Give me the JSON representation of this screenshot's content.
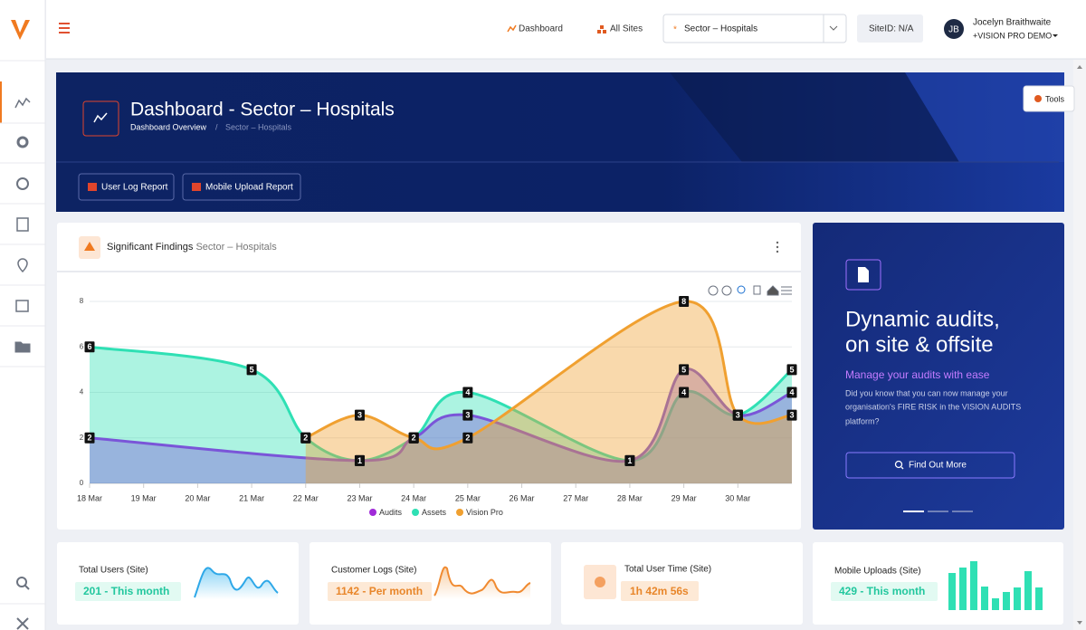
{
  "topbar": {
    "nav": [
      "Dashboard",
      "All Sites"
    ],
    "sector_select": "Sector – Hospitals",
    "site_id": "SiteID: N/A",
    "user": {
      "initials": "JB",
      "name": "Jocelyn Braithwaite",
      "org": "+VISION PRO DEMO"
    }
  },
  "tools": "Tools",
  "banner": {
    "title": "Dashboard - Sector – Hospitals",
    "breadcrumb": [
      "Dashboard Overview",
      "Sector – Hospitals"
    ],
    "buttons": [
      "User Log Report",
      "Mobile Upload Report"
    ]
  },
  "findings_card": {
    "title": "Significant Findings",
    "subtitle": "Sector – Hospitals"
  },
  "chart_data": {
    "type": "area",
    "xlim": [
      18,
      31
    ],
    "xticks": [
      {
        "value": 18,
        "label": "18 Mar"
      },
      {
        "value": 19,
        "label": "19 Mar"
      },
      {
        "value": 20,
        "label": "20 Mar"
      },
      {
        "value": 21,
        "label": "21 Mar"
      },
      {
        "value": 22,
        "label": "22 Mar"
      },
      {
        "value": 23,
        "label": "23 Mar"
      },
      {
        "value": 24,
        "label": "24 Mar"
      },
      {
        "value": 25,
        "label": "25 Mar"
      },
      {
        "value": 26,
        "label": "26 Mar"
      },
      {
        "value": 27,
        "label": "27 Mar"
      },
      {
        "value": 28,
        "label": "28 Mar"
      },
      {
        "value": 29,
        "label": "29 Mar"
      },
      {
        "value": 30,
        "label": "30 Mar"
      }
    ],
    "ylim": [
      0,
      8
    ],
    "yticks": [
      0,
      2,
      4,
      6,
      8
    ],
    "grid": true,
    "series": [
      {
        "name": "Assets",
        "color": "#2fe0b4",
        "x": [
          18,
          21,
          22,
          23,
          24,
          25,
          28,
          29,
          30,
          31
        ],
        "values": [
          6,
          5,
          2,
          1,
          2,
          4,
          1,
          4,
          3,
          5
        ]
      },
      {
        "name": "Audits",
        "color": "#7a55d8",
        "x": [
          18,
          23,
          24,
          25,
          28,
          29,
          30,
          31
        ],
        "values": [
          2,
          1,
          2,
          3,
          1,
          5,
          3,
          4
        ]
      },
      {
        "name": "Vision Pro",
        "color": "#f0a030",
        "x": [
          22,
          23,
          24,
          25,
          29,
          30,
          31
        ],
        "values": [
          2,
          3,
          2,
          2,
          8,
          3,
          3
        ]
      }
    ],
    "legend_order": [
      "Audits",
      "Assets",
      "Vision Pro"
    ]
  },
  "promo": {
    "title": [
      "Dynamic audits,",
      "on site & offsite"
    ],
    "subtitle": "Manage your audits with ease",
    "text": [
      "Did you know that you can now manage your",
      "organisation's FIRE RISK in the VISION AUDITS",
      "platform?"
    ],
    "button": "Find Out More"
  },
  "stats": [
    {
      "label": "Total Users (Site)",
      "value": "201 - This month"
    },
    {
      "label": "Customer Logs (Site)",
      "value": "1142 - Per month"
    },
    {
      "label": "Total User Time (Site)",
      "value": "1h 42m 56s"
    },
    {
      "label": "Mobile Uploads (Site)",
      "value": "429 - This month"
    }
  ]
}
